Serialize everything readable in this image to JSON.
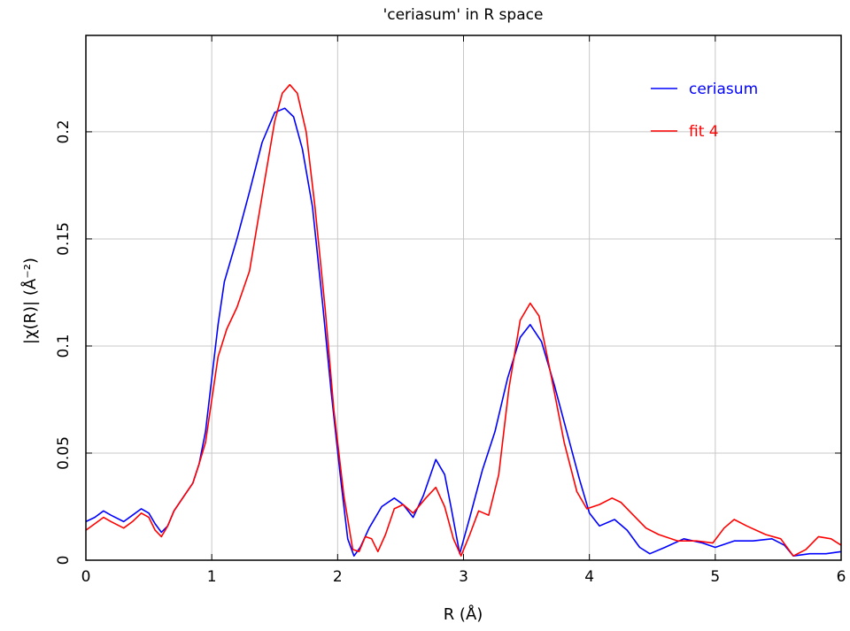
{
  "chart_data": {
    "type": "line",
    "title": "'ceriasum' in R space",
    "xlabel": "R (Å)",
    "ylabel": "|χ(R)| (Å⁻²)",
    "xlim": [
      0,
      6
    ],
    "ylim": [
      0,
      0.245
    ],
    "x_ticks": [
      0,
      1,
      2,
      3,
      4,
      5,
      6
    ],
    "x_tick_labels": [
      "0",
      "1",
      "2",
      "3",
      "4",
      "5",
      "6"
    ],
    "y_ticks": [
      0,
      0.05,
      0.1,
      0.15,
      0.2
    ],
    "y_tick_labels": [
      "0",
      "0.05",
      "0.1",
      "0.15",
      "0.2"
    ],
    "grid": true,
    "legend_position": "top-right",
    "series": [
      {
        "name": "ceriasum",
        "color": "#0000ff",
        "points": [
          [
            0.0,
            0.018
          ],
          [
            0.07,
            0.02
          ],
          [
            0.14,
            0.023
          ],
          [
            0.2,
            0.021
          ],
          [
            0.3,
            0.018
          ],
          [
            0.37,
            0.021
          ],
          [
            0.44,
            0.024
          ],
          [
            0.5,
            0.022
          ],
          [
            0.55,
            0.017
          ],
          [
            0.6,
            0.013
          ],
          [
            0.65,
            0.016
          ],
          [
            0.7,
            0.023
          ],
          [
            0.78,
            0.03
          ],
          [
            0.85,
            0.036
          ],
          [
            0.9,
            0.045
          ],
          [
            0.95,
            0.06
          ],
          [
            1.0,
            0.085
          ],
          [
            1.05,
            0.11
          ],
          [
            1.1,
            0.13
          ],
          [
            1.2,
            0.15
          ],
          [
            1.3,
            0.172
          ],
          [
            1.4,
            0.195
          ],
          [
            1.5,
            0.209
          ],
          [
            1.58,
            0.211
          ],
          [
            1.65,
            0.207
          ],
          [
            1.72,
            0.192
          ],
          [
            1.8,
            0.165
          ],
          [
            1.88,
            0.12
          ],
          [
            1.95,
            0.078
          ],
          [
            2.02,
            0.04
          ],
          [
            2.08,
            0.01
          ],
          [
            2.13,
            0.002
          ],
          [
            2.18,
            0.006
          ],
          [
            2.25,
            0.015
          ],
          [
            2.35,
            0.025
          ],
          [
            2.45,
            0.029
          ],
          [
            2.52,
            0.026
          ],
          [
            2.6,
            0.02
          ],
          [
            2.68,
            0.03
          ],
          [
            2.78,
            0.047
          ],
          [
            2.85,
            0.04
          ],
          [
            2.9,
            0.025
          ],
          [
            2.97,
            0.003
          ],
          [
            3.05,
            0.02
          ],
          [
            3.15,
            0.042
          ],
          [
            3.25,
            0.06
          ],
          [
            3.35,
            0.085
          ],
          [
            3.45,
            0.104
          ],
          [
            3.53,
            0.11
          ],
          [
            3.62,
            0.102
          ],
          [
            3.72,
            0.082
          ],
          [
            3.82,
            0.06
          ],
          [
            3.92,
            0.038
          ],
          [
            4.0,
            0.022
          ],
          [
            4.08,
            0.016
          ],
          [
            4.2,
            0.019
          ],
          [
            4.3,
            0.014
          ],
          [
            4.4,
            0.006
          ],
          [
            4.48,
            0.003
          ],
          [
            4.6,
            0.006
          ],
          [
            4.75,
            0.01
          ],
          [
            4.9,
            0.008
          ],
          [
            5.0,
            0.006
          ],
          [
            5.15,
            0.009
          ],
          [
            5.3,
            0.009
          ],
          [
            5.45,
            0.01
          ],
          [
            5.55,
            0.007
          ],
          [
            5.62,
            0.002
          ],
          [
            5.75,
            0.003
          ],
          [
            5.88,
            0.003
          ],
          [
            6.0,
            0.004
          ]
        ]
      },
      {
        "name": "fit 4",
        "color": "#ff0000",
        "points": [
          [
            0.0,
            0.014
          ],
          [
            0.07,
            0.017
          ],
          [
            0.14,
            0.02
          ],
          [
            0.2,
            0.018
          ],
          [
            0.3,
            0.015
          ],
          [
            0.37,
            0.018
          ],
          [
            0.44,
            0.022
          ],
          [
            0.5,
            0.02
          ],
          [
            0.55,
            0.014
          ],
          [
            0.6,
            0.011
          ],
          [
            0.65,
            0.016
          ],
          [
            0.7,
            0.023
          ],
          [
            0.78,
            0.03
          ],
          [
            0.85,
            0.036
          ],
          [
            0.9,
            0.045
          ],
          [
            0.95,
            0.055
          ],
          [
            1.0,
            0.075
          ],
          [
            1.05,
            0.095
          ],
          [
            1.12,
            0.108
          ],
          [
            1.2,
            0.118
          ],
          [
            1.3,
            0.135
          ],
          [
            1.4,
            0.17
          ],
          [
            1.5,
            0.205
          ],
          [
            1.56,
            0.218
          ],
          [
            1.62,
            0.222
          ],
          [
            1.68,
            0.218
          ],
          [
            1.75,
            0.2
          ],
          [
            1.82,
            0.165
          ],
          [
            1.9,
            0.118
          ],
          [
            1.97,
            0.07
          ],
          [
            2.05,
            0.03
          ],
          [
            2.12,
            0.005
          ],
          [
            2.17,
            0.004
          ],
          [
            2.22,
            0.011
          ],
          [
            2.27,
            0.01
          ],
          [
            2.32,
            0.004
          ],
          [
            2.38,
            0.012
          ],
          [
            2.45,
            0.024
          ],
          [
            2.52,
            0.026
          ],
          [
            2.6,
            0.022
          ],
          [
            2.7,
            0.029
          ],
          [
            2.78,
            0.034
          ],
          [
            2.85,
            0.025
          ],
          [
            2.92,
            0.01
          ],
          [
            2.98,
            0.002
          ],
          [
            3.05,
            0.012
          ],
          [
            3.12,
            0.023
          ],
          [
            3.2,
            0.021
          ],
          [
            3.28,
            0.04
          ],
          [
            3.36,
            0.08
          ],
          [
            3.45,
            0.112
          ],
          [
            3.53,
            0.12
          ],
          [
            3.6,
            0.114
          ],
          [
            3.7,
            0.085
          ],
          [
            3.8,
            0.055
          ],
          [
            3.9,
            0.032
          ],
          [
            3.98,
            0.024
          ],
          [
            4.08,
            0.026
          ],
          [
            4.18,
            0.029
          ],
          [
            4.25,
            0.027
          ],
          [
            4.35,
            0.021
          ],
          [
            4.45,
            0.015
          ],
          [
            4.55,
            0.012
          ],
          [
            4.7,
            0.009
          ],
          [
            4.85,
            0.009
          ],
          [
            4.98,
            0.008
          ],
          [
            5.07,
            0.015
          ],
          [
            5.15,
            0.019
          ],
          [
            5.25,
            0.016
          ],
          [
            5.4,
            0.012
          ],
          [
            5.52,
            0.01
          ],
          [
            5.62,
            0.002
          ],
          [
            5.72,
            0.005
          ],
          [
            5.82,
            0.011
          ],
          [
            5.92,
            0.01
          ],
          [
            6.0,
            0.007
          ]
        ]
      }
    ]
  }
}
